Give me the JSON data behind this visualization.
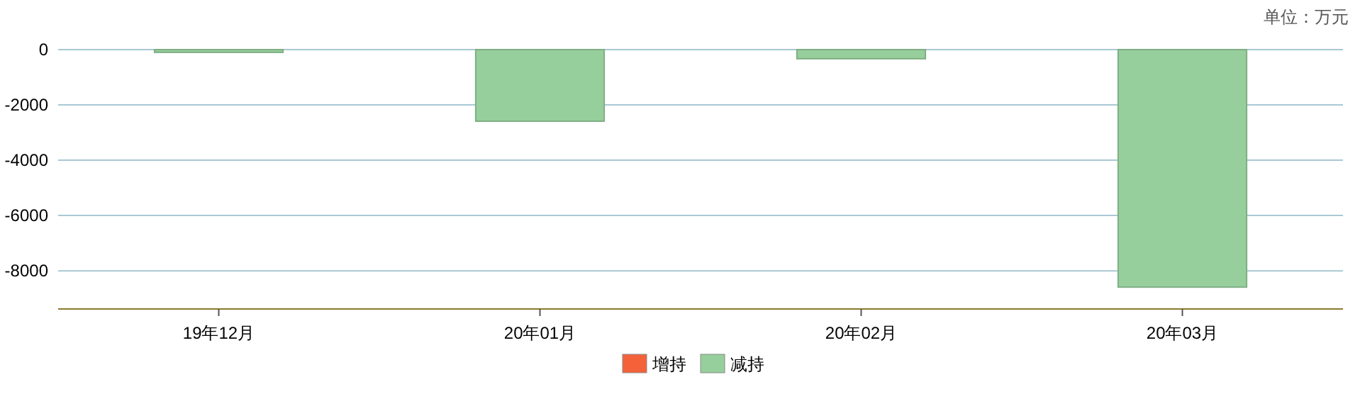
{
  "chart_data": {
    "type": "bar",
    "categories": [
      "19年12月",
      "20年01月",
      "20年02月",
      "20年03月"
    ],
    "series": [
      {
        "name": "增持",
        "color": "#f4623a",
        "values": [
          null,
          null,
          null,
          null
        ]
      },
      {
        "name": "减持",
        "color": "#96cf9b",
        "values": [
          -100,
          -2590,
          -330,
          -8590
        ]
      }
    ],
    "ylim": [
      -9380,
      0
    ],
    "yticks": [
      0,
      -2000,
      -4000,
      -6000,
      -8000
    ],
    "grid": "y",
    "legend": "bottom",
    "annotations": [
      "单位：万元"
    ]
  }
}
